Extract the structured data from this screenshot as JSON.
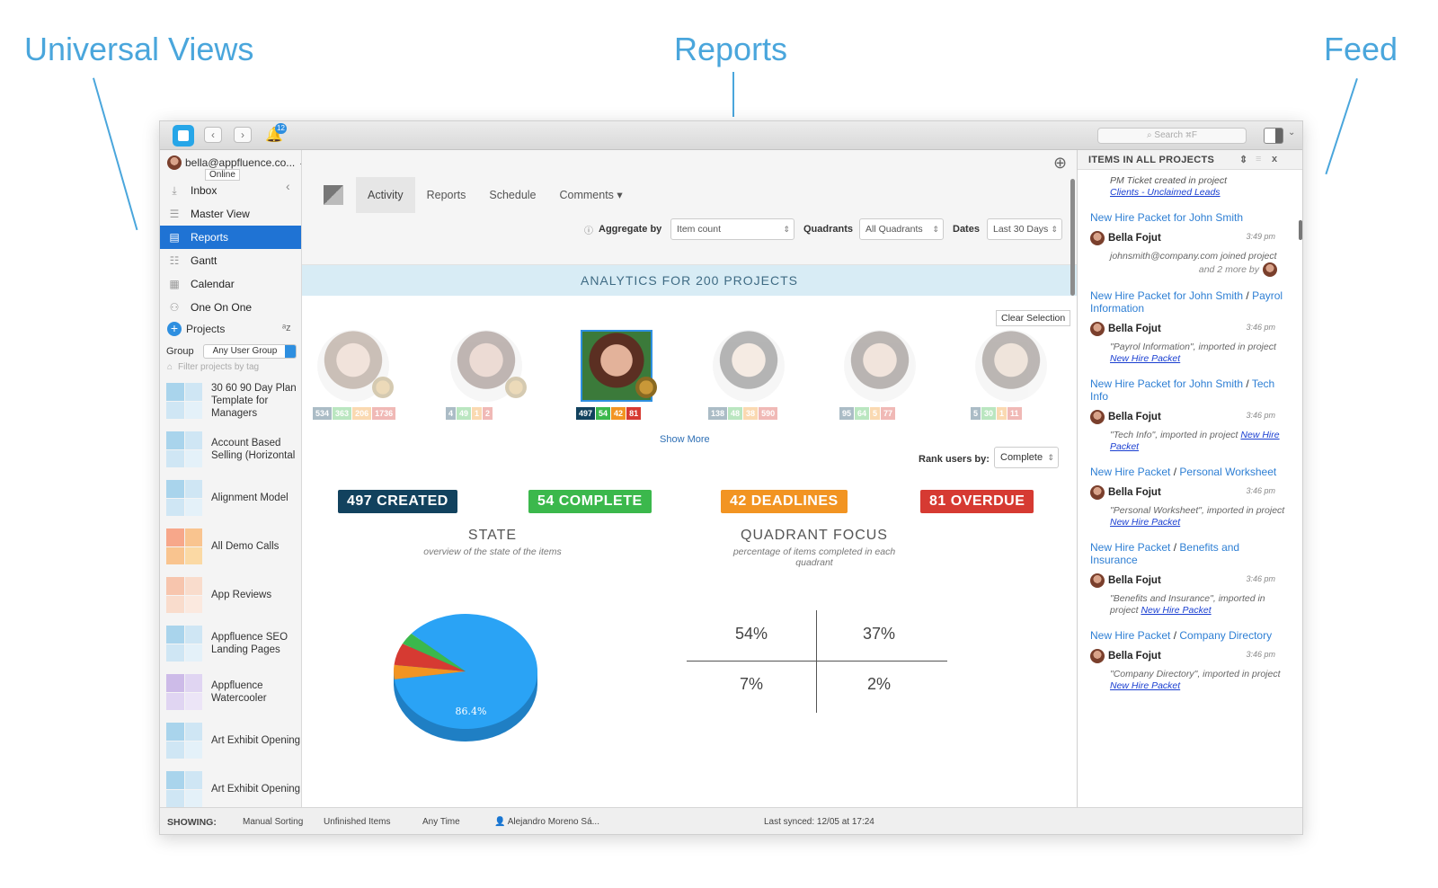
{
  "callouts": {
    "universal_views": "Universal Views",
    "reports": "Reports",
    "feed": "Feed"
  },
  "titlebar": {
    "notification_count": "12",
    "search_placeholder": "Search ⌘F",
    "icons": [
      "app-logo",
      "back-arrow",
      "forward-arrow",
      "bell-icon",
      "search-icon",
      "panel-toggle-icon"
    ]
  },
  "sidebar": {
    "account": "bella@appfluence.co...",
    "online_tooltip": "Online",
    "nav": [
      {
        "label": "Inbox",
        "icon": "inbox-icon"
      },
      {
        "label": "Master View",
        "icon": "list-icon"
      },
      {
        "label": "Reports",
        "icon": "chart-icon",
        "active": true
      },
      {
        "label": "Gantt",
        "icon": "gantt-icon"
      },
      {
        "label": "Calendar",
        "icon": "calendar-icon"
      },
      {
        "label": "One On One",
        "icon": "people-icon"
      }
    ],
    "projects_label": "Projects",
    "group_label": "Group",
    "group_value": "Any User Group",
    "tag_filter_placeholder": "Filter projects by tag",
    "projects": [
      {
        "name": "30 60 90 Day Plan Template for Managers",
        "colors": [
          "#a9d4ec",
          "#cfe6f4",
          "#cfe6f4",
          "#e4f1f9"
        ]
      },
      {
        "name": "Account Based Selling (Horizontal",
        "colors": [
          "#a9d4ec",
          "#cfe6f4",
          "#cfe6f4",
          "#e4f1f9"
        ]
      },
      {
        "name": "Alignment Model",
        "colors": [
          "#a9d4ec",
          "#cfe6f4",
          "#cfe6f4",
          "#e4f1f9"
        ]
      },
      {
        "name": "All Demo Calls",
        "colors": [
          "#f7a78a",
          "#f9c48f",
          "#f9c48f",
          "#fbd9a4"
        ]
      },
      {
        "name": "App Reviews",
        "colors": [
          "#f7c5ad",
          "#f9dccc",
          "#f9dccc",
          "#fbe9df"
        ]
      },
      {
        "name": "Appfluence SEO Landing Pages",
        "colors": [
          "#a9d4ec",
          "#cfe6f4",
          "#cfe6f4",
          "#e4f1f9"
        ]
      },
      {
        "name": "Appfluence Watercooler",
        "colors": [
          "#cdbbe8",
          "#e0d5f2",
          "#e0d5f2",
          "#ece5f7"
        ]
      },
      {
        "name": "Art Exhibit Opening",
        "colors": [
          "#a9d4ec",
          "#cfe6f4",
          "#cfe6f4",
          "#e4f1f9"
        ]
      },
      {
        "name": "Art Exhibit Opening",
        "colors": [
          "#a9d4ec",
          "#cfe6f4",
          "#cfe6f4",
          "#e4f1f9"
        ]
      }
    ]
  },
  "main": {
    "tabs": [
      "Activity",
      "Reports",
      "Schedule",
      "Comments ▾"
    ],
    "aggregate_label": "Aggregate by",
    "aggregate_value": "Item count",
    "quadrants_label": "Quadrants",
    "quadrants_value": "All Quadrants",
    "dates_label": "Dates",
    "dates_value": "Last 30 Days",
    "banner": "ANALYTICS FOR 200 PROJECTS",
    "clear_selection": "Clear Selection",
    "users": [
      {
        "stats": [
          "534",
          "363",
          "206",
          "1736"
        ],
        "faded": true,
        "skin": "#d9b09a",
        "hair": "#6b4a34"
      },
      {
        "stats": [
          "4",
          "49",
          "1",
          "2"
        ],
        "faded": true,
        "skin": "#c99a86",
        "hair": "#4a2e26"
      },
      {
        "stats": [
          "497",
          "54",
          "42",
          "81"
        ],
        "faded": false,
        "selected": true,
        "skin": "#e3b29a",
        "hair": "#5b2f22"
      },
      {
        "stats": [
          "138",
          "48",
          "38",
          "590"
        ],
        "faded": true,
        "skin": "#e4c7b1",
        "hair": "#2b2b2b"
      },
      {
        "stats": [
          "95",
          "64",
          "5",
          "77"
        ],
        "faded": true,
        "skin": "#d8b59c",
        "hair": "#3a2c24"
      },
      {
        "stats": [
          "5",
          "30",
          "1",
          "11"
        ],
        "faded": true,
        "skin": "#d4b49b",
        "hair": "#3e3028"
      }
    ],
    "show_more": "Show More",
    "rank_label": "Rank users by:",
    "rank_value": "Complete",
    "kpis": [
      {
        "label": "497 CREATED",
        "color": "#12425e"
      },
      {
        "label": "54 COMPLETE",
        "color": "#3bb84c"
      },
      {
        "label": "42 DEADLINES",
        "color": "#f29422"
      },
      {
        "label": "81 OVERDUE",
        "color": "#d63a32"
      }
    ],
    "state_title": "STATE",
    "state_subtitle": "overview of the state of the items",
    "quadrant_title": "QUADRANT FOCUS",
    "quadrant_subtitle": "percentage of items completed in each quadrant",
    "quadrant_values": [
      "54%",
      "37%",
      "7%",
      "2%"
    ]
  },
  "chart_data": {
    "type": "pie",
    "slices": [
      {
        "value": 86.4,
        "color": "#2aa3f5"
      },
      {
        "value": 4.0,
        "color": "#f29422"
      },
      {
        "value": 6.2,
        "color": "#d63a32"
      },
      {
        "value": 3.4,
        "color": "#3bb84c"
      }
    ],
    "data_label": "86.4%"
  },
  "feed": {
    "header": "ITEMS IN ALL PROJECTS",
    "top_note_prefix": "PM Ticket created in project",
    "top_note_link": "Clients - Unclaimed Leads",
    "entries": [
      {
        "title": "New Hire Packet for John Smith",
        "subtitle": "",
        "user": "Bella Fojut",
        "time": "3:49 pm",
        "text": "johnsmith@company.com joined project",
        "link": "",
        "more": "and 2 more by"
      },
      {
        "title": "New Hire Packet for John Smith",
        "subtitle": "Payrol Information",
        "user": "Bella Fojut",
        "time": "3:46 pm",
        "text": "\"Payrol Information\", imported in project",
        "link": "New Hire Packet",
        "more": ""
      },
      {
        "title": "New Hire Packet for John Smith",
        "subtitle": "Tech Info",
        "user": "Bella Fojut",
        "time": "3:46 pm",
        "text": "\"Tech Info\", imported in project",
        "link": "New Hire Packet",
        "more": ""
      },
      {
        "title": "New Hire Packet",
        "subtitle": "Personal Worksheet",
        "user": "Bella Fojut",
        "time": "3:46 pm",
        "text": "\"Personal Worksheet\", imported in project",
        "link": "New Hire Packet",
        "more": ""
      },
      {
        "title": "New Hire Packet",
        "subtitle": "Benefits and Insurance",
        "user": "Bella Fojut",
        "time": "3:46 pm",
        "text": "\"Benefits and Insurance\", imported in project",
        "link": "New Hire Packet",
        "more": ""
      },
      {
        "title": "New Hire Packet",
        "subtitle": "Company Directory",
        "user": "Bella Fojut",
        "time": "3:46 pm",
        "text": "\"Company Directory\", imported in project",
        "link": "New Hire Packet",
        "more": ""
      }
    ]
  },
  "statusbar": {
    "showing": "SHOWING:",
    "sorting": "Manual Sorting",
    "items": "Unfinished Items",
    "time": "Any Time",
    "user": "Alejandro Moreno Sá...",
    "synced": "Last synced: 12/05 at 17:24"
  }
}
